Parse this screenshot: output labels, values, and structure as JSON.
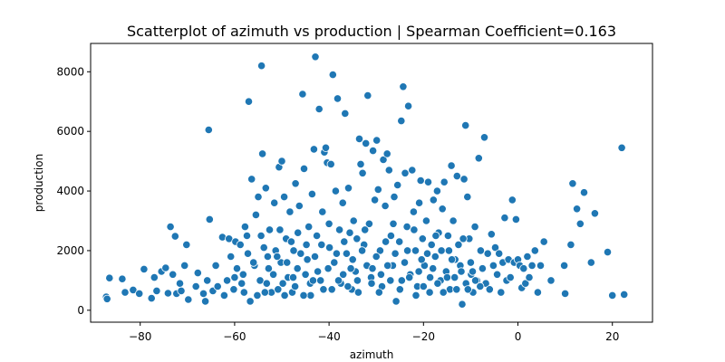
{
  "chart_data": {
    "type": "scatter",
    "title": "Scatterplot of azimuth vs production | Spearman Coefficient=0.163",
    "xlabel": "azimuth",
    "ylabel": "production",
    "xlim": [
      -90.5,
      28.5
    ],
    "ylim": [
      -400,
      8950
    ],
    "xticks": [
      -80,
      -60,
      -40,
      -20,
      0,
      20
    ],
    "yticks": [
      0,
      2000,
      4000,
      6000,
      8000
    ],
    "xtick_labels": [
      "−80",
      "−60",
      "−40",
      "−20",
      "0",
      "20"
    ],
    "ytick_labels": [
      "0",
      "2000",
      "4000",
      "6000",
      "8000"
    ],
    "grid": false,
    "legend": null,
    "series": [
      {
        "color": "#1f77b4",
        "points": [
          [
            -87.2,
            450
          ],
          [
            -87.0,
            380
          ],
          [
            -86.5,
            1080
          ],
          [
            -83.8,
            1050
          ],
          [
            -83.2,
            600
          ],
          [
            -81.5,
            680
          ],
          [
            -80.2,
            560
          ],
          [
            -79.2,
            1380
          ],
          [
            -77.6,
            400
          ],
          [
            -77.0,
            1100
          ],
          [
            -76.5,
            650
          ],
          [
            -75.5,
            1300
          ],
          [
            -74.6,
            1420
          ],
          [
            -74.1,
            570
          ],
          [
            -73.6,
            2800
          ],
          [
            -73.1,
            1200
          ],
          [
            -72.6,
            2480
          ],
          [
            -72.3,
            560
          ],
          [
            -71.6,
            900
          ],
          [
            -71.3,
            650
          ],
          [
            -70.6,
            1500
          ],
          [
            -70.2,
            2200
          ],
          [
            -69.8,
            360
          ],
          [
            -68.2,
            800
          ],
          [
            -67.8,
            1250
          ],
          [
            -66.6,
            560
          ],
          [
            -66.2,
            300
          ],
          [
            -65.8,
            1000
          ],
          [
            -65.5,
            6050
          ],
          [
            -65.3,
            3050
          ],
          [
            -64.6,
            650
          ],
          [
            -64.0,
            1500
          ],
          [
            -63.6,
            800
          ],
          [
            -62.6,
            2450
          ],
          [
            -62.2,
            500
          ],
          [
            -61.6,
            1000
          ],
          [
            -61.2,
            2400
          ],
          [
            -60.8,
            1800
          ],
          [
            -60.2,
            700
          ],
          [
            -59.8,
            2300
          ],
          [
            -58.8,
            2200
          ],
          [
            -58.2,
            1200
          ],
          [
            -57.8,
            2800
          ],
          [
            -57.4,
            2500
          ],
          [
            -57.0,
            7000
          ],
          [
            -56.7,
            300
          ],
          [
            -56.4,
            4400
          ],
          [
            -55.8,
            1500
          ],
          [
            -55.5,
            3200
          ],
          [
            -55.0,
            3800
          ],
          [
            -54.6,
            1000
          ],
          [
            -54.3,
            8200
          ],
          [
            -54.1,
            5250
          ],
          [
            -53.8,
            2100
          ],
          [
            -53.4,
            4100
          ],
          [
            -53.0,
            1800
          ],
          [
            -52.6,
            2700
          ],
          [
            -52.2,
            600
          ],
          [
            -51.8,
            1200
          ],
          [
            -51.6,
            3600
          ],
          [
            -51.3,
            2000
          ],
          [
            -50.6,
            4800
          ],
          [
            -50.2,
            1600
          ],
          [
            -50.0,
            5000
          ],
          [
            -49.8,
            900
          ],
          [
            -49.5,
            3800
          ],
          [
            -49.1,
            2400
          ],
          [
            -48.7,
            1100
          ],
          [
            -48.3,
            3300
          ],
          [
            -47.8,
            600
          ],
          [
            -47.5,
            2000
          ],
          [
            -47.1,
            4250
          ],
          [
            -46.7,
            1400
          ],
          [
            -46.3,
            3500
          ],
          [
            -45.6,
            7250
          ],
          [
            -45.3,
            4750
          ],
          [
            -44.6,
            1700
          ],
          [
            -44.3,
            2800
          ],
          [
            -43.9,
            500
          ],
          [
            -43.6,
            3900
          ],
          [
            -43.2,
            5400
          ],
          [
            -42.9,
            8500
          ],
          [
            -42.6,
            2500
          ],
          [
            -42.1,
            6750
          ],
          [
            -41.8,
            1000
          ],
          [
            -41.4,
            3300
          ],
          [
            -41.0,
            5300
          ],
          [
            -40.7,
            5450
          ],
          [
            -40.4,
            4950
          ],
          [
            -39.9,
            2100
          ],
          [
            -39.6,
            4900
          ],
          [
            -39.2,
            7900
          ],
          [
            -38.9,
            1600
          ],
          [
            -38.6,
            4000
          ],
          [
            -38.2,
            7100
          ],
          [
            -37.8,
            2700
          ],
          [
            -37.5,
            900
          ],
          [
            -37.1,
            3600
          ],
          [
            -36.6,
            6600
          ],
          [
            -36.3,
            1900
          ],
          [
            -35.9,
            4100
          ],
          [
            -35.6,
            2600
          ],
          [
            -35.2,
            700
          ],
          [
            -34.8,
            3000
          ],
          [
            -34.4,
            1300
          ],
          [
            -34.1,
            2400
          ],
          [
            -33.6,
            5750
          ],
          [
            -33.3,
            4900
          ],
          [
            -32.9,
            4600
          ],
          [
            -32.6,
            2200
          ],
          [
            -32.2,
            5600
          ],
          [
            -31.8,
            7200
          ],
          [
            -31.5,
            2900
          ],
          [
            -31.1,
            1100
          ],
          [
            -30.7,
            5350
          ],
          [
            -30.3,
            3700
          ],
          [
            -29.9,
            5700
          ],
          [
            -29.6,
            4050
          ],
          [
            -29.2,
            2000
          ],
          [
            -28.8,
            800
          ],
          [
            -28.5,
            5050
          ],
          [
            -28.1,
            3500
          ],
          [
            -27.7,
            5250
          ],
          [
            -27.3,
            4700
          ],
          [
            -26.9,
            2500
          ],
          [
            -26.5,
            1500
          ],
          [
            -26.2,
            3800
          ],
          [
            -25.8,
            300
          ],
          [
            -25.5,
            4200
          ],
          [
            -25.1,
            2300
          ],
          [
            -24.7,
            6350
          ],
          [
            -24.3,
            7500
          ],
          [
            -23.9,
            4600
          ],
          [
            -23.5,
            2800
          ],
          [
            -23.2,
            6850
          ],
          [
            -22.8,
            1200
          ],
          [
            -22.4,
            4700
          ],
          [
            -22.1,
            3300
          ],
          [
            -21.7,
            2000
          ],
          [
            -21.3,
            800
          ],
          [
            -20.9,
            3600
          ],
          [
            -20.6,
            4350
          ],
          [
            -20.2,
            2400
          ],
          [
            -19.8,
            1500
          ],
          [
            -19.4,
            3000
          ],
          [
            -19.0,
            4300
          ],
          [
            -18.7,
            600
          ],
          [
            -18.3,
            2200
          ],
          [
            -17.9,
            3700
          ],
          [
            -17.5,
            1800
          ],
          [
            -17.1,
            4000
          ],
          [
            -16.8,
            2600
          ],
          [
            -16.4,
            1000
          ],
          [
            -16.0,
            3400
          ],
          [
            -15.6,
            4300
          ],
          [
            -15.2,
            1300
          ],
          [
            -14.8,
            2500
          ],
          [
            -14.4,
            700
          ],
          [
            -14.1,
            4850
          ],
          [
            -13.7,
            3000
          ],
          [
            -13.3,
            1700
          ],
          [
            -12.9,
            4500
          ],
          [
            -12.6,
            2200
          ],
          [
            -12.2,
            1500
          ],
          [
            -11.8,
            200
          ],
          [
            -11.4,
            4400
          ],
          [
            -11.1,
            6200
          ],
          [
            -10.7,
            3800
          ],
          [
            -10.3,
            2400
          ],
          [
            -9.9,
            1200
          ],
          [
            -9.5,
            600
          ],
          [
            -9.1,
            2800
          ],
          [
            -8.7,
            1000
          ],
          [
            -8.3,
            5100
          ],
          [
            -7.9,
            2000
          ],
          [
            -7.5,
            1400
          ],
          [
            -7.1,
            5800
          ],
          [
            -6.8,
            900
          ],
          [
            -6.4,
            1900
          ],
          [
            -6.0,
            700
          ],
          [
            -5.6,
            2550
          ],
          [
            -5.2,
            1500
          ],
          [
            -4.8,
            2100
          ],
          [
            -4.4,
            1200
          ],
          [
            -4.0,
            1900
          ],
          [
            -3.6,
            600
          ],
          [
            -3.2,
            1600
          ],
          [
            -2.8,
            3100
          ],
          [
            -2.4,
            1000
          ],
          [
            -2.0,
            1700
          ],
          [
            -1.6,
            1100
          ],
          [
            -1.2,
            3700
          ],
          [
            -0.8,
            1600
          ],
          [
            -0.4,
            3050
          ],
          [
            0.0,
            1700
          ],
          [
            0.4,
            1500
          ],
          [
            0.8,
            750
          ],
          [
            1.2,
            1400
          ],
          [
            1.6,
            900
          ],
          [
            2.0,
            1800
          ],
          [
            2.4,
            1100
          ],
          [
            3.0,
            1500
          ],
          [
            3.6,
            2000
          ],
          [
            4.2,
            600
          ],
          [
            4.8,
            1500
          ],
          [
            5.5,
            2300
          ],
          [
            7.0,
            1000
          ],
          [
            9.8,
            1500
          ],
          [
            10.0,
            560
          ],
          [
            11.2,
            2200
          ],
          [
            11.6,
            4250
          ],
          [
            12.5,
            3400
          ],
          [
            13.2,
            2900
          ],
          [
            14.0,
            3950
          ],
          [
            15.5,
            1600
          ],
          [
            16.3,
            3250
          ],
          [
            19.0,
            1950
          ],
          [
            20.0,
            500
          ],
          [
            22.0,
            5450
          ],
          [
            22.5,
            530
          ],
          [
            -59.5,
            1400
          ],
          [
            -58.5,
            900
          ],
          [
            -56.0,
            1600
          ],
          [
            -55.2,
            500
          ],
          [
            -53.2,
            900
          ],
          [
            -52.8,
            1400
          ],
          [
            -50.8,
            700
          ],
          [
            -50.4,
            2700
          ],
          [
            -48.9,
            1600
          ],
          [
            -48.0,
            2300
          ],
          [
            -47.2,
            800
          ],
          [
            -46.0,
            1900
          ],
          [
            -45.0,
            1200
          ],
          [
            -44.0,
            900
          ],
          [
            -43.0,
            1800
          ],
          [
            -42.4,
            1300
          ],
          [
            -41.6,
            2200
          ],
          [
            -40.2,
            1400
          ],
          [
            -39.4,
            700
          ],
          [
            -38.4,
            1900
          ],
          [
            -37.0,
            1200
          ],
          [
            -36.0,
            800
          ],
          [
            -35.0,
            1700
          ],
          [
            -34.0,
            1000
          ],
          [
            -33.0,
            2000
          ],
          [
            -32.0,
            1500
          ],
          [
            -31.0,
            900
          ],
          [
            -30.0,
            1800
          ],
          [
            -29.0,
            1200
          ],
          [
            -28.0,
            2300
          ],
          [
            -27.0,
            1000
          ],
          [
            -26.0,
            1900
          ],
          [
            -25.0,
            700
          ],
          [
            -24.0,
            1600
          ],
          [
            -23.0,
            1100
          ],
          [
            -22.0,
            2700
          ],
          [
            -21.0,
            1300
          ],
          [
            -20.0,
            800
          ],
          [
            -19.2,
            1900
          ],
          [
            -18.0,
            1400
          ],
          [
            -17.0,
            900
          ],
          [
            -16.2,
            2000
          ],
          [
            -15.0,
            1100
          ],
          [
            -14.0,
            1700
          ],
          [
            -13.0,
            700
          ],
          [
            -12.0,
            1300
          ],
          [
            -11.0,
            900
          ],
          [
            -10.0,
            1600
          ],
          [
            -9.0,
            1000
          ],
          [
            -8.0,
            800
          ],
          [
            -60.0,
            1100
          ],
          [
            -58.0,
            600
          ],
          [
            -57.2,
            1900
          ],
          [
            -54.4,
            2500
          ],
          [
            -53.6,
            600
          ],
          [
            -51.0,
            1800
          ],
          [
            -49.4,
            500
          ],
          [
            -47.6,
            1100
          ],
          [
            -46.6,
            2600
          ],
          [
            -45.4,
            500
          ],
          [
            -44.8,
            2200
          ],
          [
            -43.4,
            1000
          ],
          [
            -41.2,
            700
          ],
          [
            -40.0,
            2900
          ],
          [
            -38.0,
            1000
          ],
          [
            -36.8,
            2300
          ],
          [
            -35.4,
            1400
          ],
          [
            -33.8,
            600
          ],
          [
            -32.4,
            2700
          ],
          [
            -30.8,
            1400
          ],
          [
            -29.4,
            600
          ],
          [
            -27.6,
            1500
          ],
          [
            -26.4,
            2900
          ],
          [
            -24.6,
            1000
          ],
          [
            -23.4,
            2000
          ],
          [
            -21.6,
            500
          ],
          [
            -20.4,
            1700
          ],
          [
            -18.6,
            1100
          ],
          [
            -17.4,
            2500
          ],
          [
            -15.8,
            600
          ],
          [
            -14.6,
            2000
          ],
          [
            -13.4,
            1100
          ],
          [
            -11.6,
            2400
          ],
          [
            -10.6,
            700
          ],
          [
            -9.6,
            1300
          ]
        ]
      }
    ]
  }
}
